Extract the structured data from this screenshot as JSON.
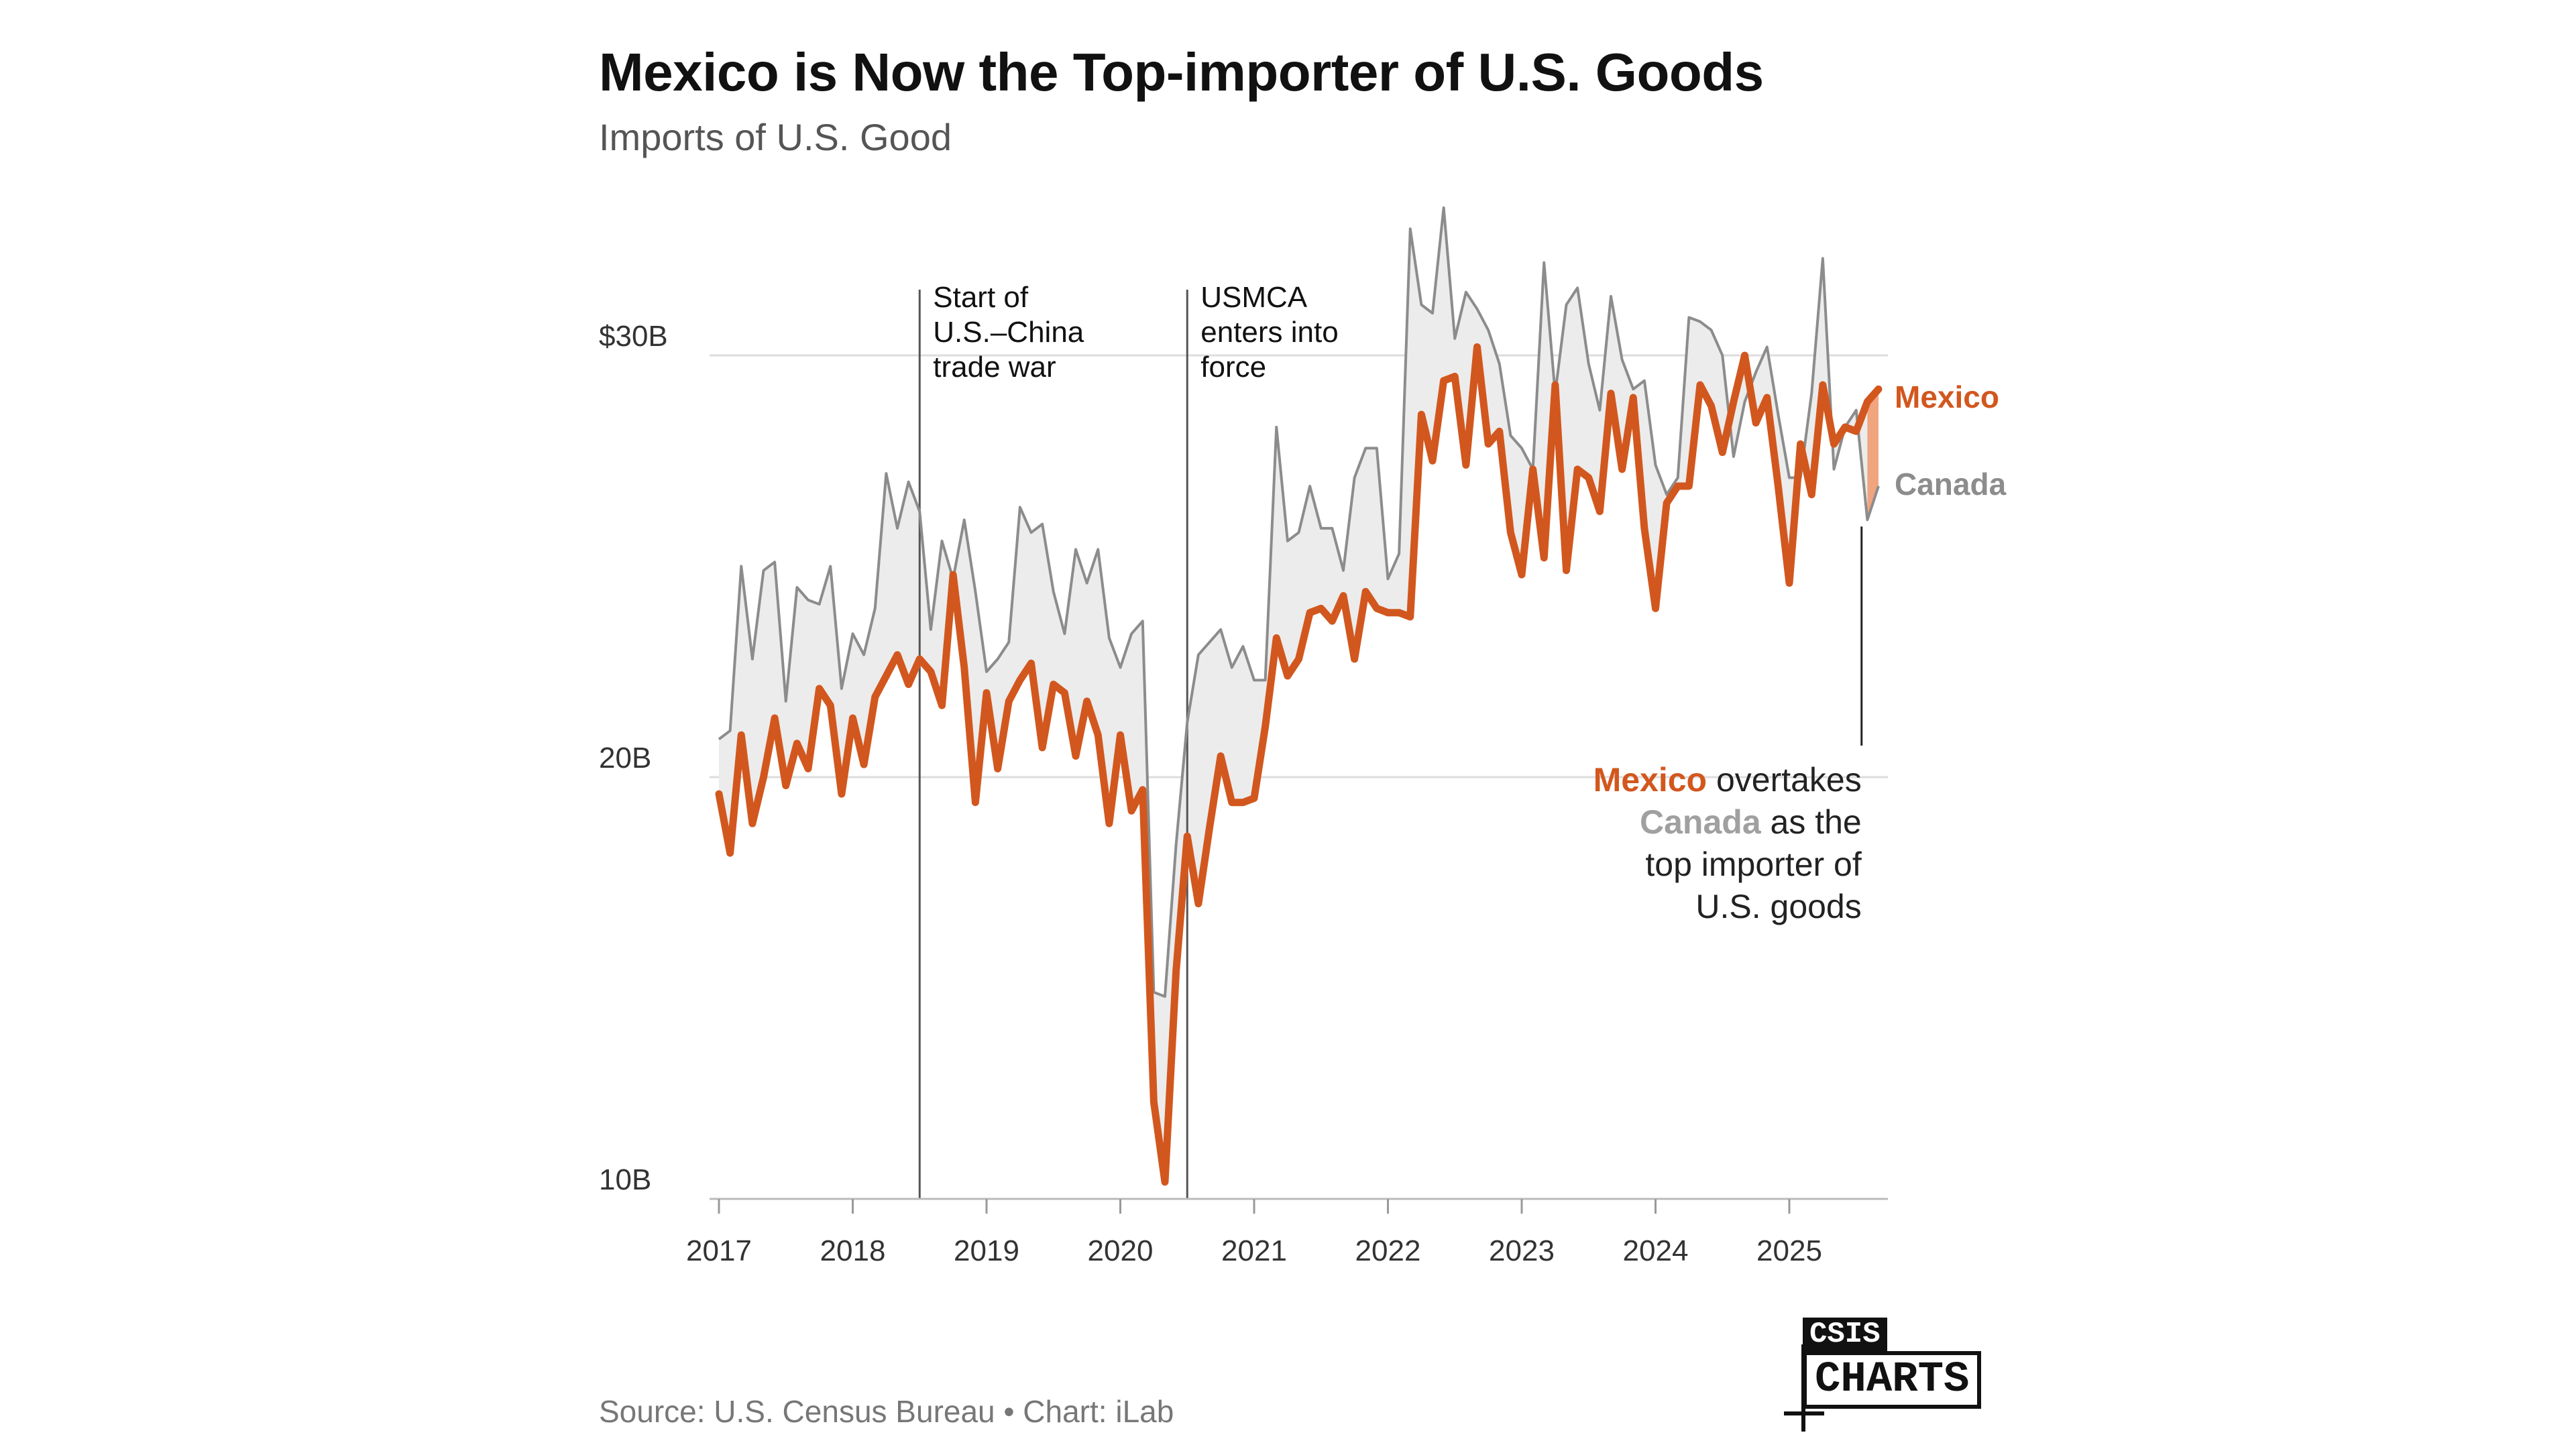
{
  "title": "Mexico is Now the Top-importer of U.S. Goods",
  "subtitle": "Imports of U.S. Good",
  "source": "Source: U.S. Census Bureau • Chart: iLab",
  "logo": {
    "top": "CSIS",
    "bottom": "CHARTS"
  },
  "colors": {
    "mexico": "#d2571e",
    "canada": "#8c8c8c",
    "fill": "#ececec",
    "overtake_fill": "#f0a57e",
    "grid": "#dddddd",
    "vline": "#555555"
  },
  "chart_data": {
    "type": "line",
    "title": "Mexico is Now the Top-importer of U.S. Goods",
    "subtitle": "Imports of U.S. Good",
    "x_start": "2017-01",
    "x_end": "2025-07",
    "ylim": [
      10,
      31
    ],
    "ytick_values": [
      10,
      20,
      30
    ],
    "ytick_labels": [
      "10B",
      "20B",
      "$30B"
    ],
    "xtick_years": [
      2017,
      2018,
      2019,
      2020,
      2021,
      2022,
      2023,
      2024,
      2025
    ],
    "xtick_labels": [
      "2017",
      "2018",
      "2019",
      "2020",
      "2021",
      "2022",
      "2023",
      "2024",
      "2025"
    ],
    "grid": "horizontal",
    "series": [
      {
        "name": "Mexico",
        "values": [
          19.6,
          18.2,
          21.0,
          18.9,
          20.0,
          21.4,
          19.8,
          20.8,
          20.2,
          22.1,
          21.7,
          19.6,
          21.4,
          20.3,
          21.9,
          22.4,
          22.9,
          22.2,
          22.8,
          22.5,
          21.7,
          24.8,
          22.6,
          19.4,
          22.0,
          20.2,
          21.8,
          22.3,
          22.7,
          20.7,
          22.2,
          22.0,
          20.5,
          21.8,
          21.0,
          18.9,
          21.0,
          19.2,
          19.7,
          12.3,
          10.4,
          15.4,
          18.6,
          17.0,
          18.8,
          20.5,
          19.4,
          19.4,
          19.5,
          21.2,
          23.3,
          22.4,
          22.8,
          23.9,
          24.0,
          23.7,
          24.3,
          22.8,
          24.4,
          24.0,
          23.9,
          23.9,
          23.8,
          28.6,
          27.5,
          29.4,
          29.5,
          27.4,
          30.2,
          27.9,
          28.2,
          25.8,
          24.8,
          27.3,
          25.2,
          29.3,
          24.9,
          27.3,
          27.1,
          26.3,
          29.1,
          27.3,
          29.0,
          25.9,
          24.0,
          26.5,
          26.9,
          26.9,
          29.3,
          28.8,
          27.7,
          28.9,
          30.0,
          28.4,
          29.0,
          26.9,
          24.6,
          27.9,
          26.7,
          29.3,
          27.9,
          28.3,
          28.2,
          28.9,
          29.2
        ]
      },
      {
        "name": "Canada",
        "values": [
          20.9,
          21.1,
          25.0,
          22.8,
          24.9,
          25.1,
          21.8,
          24.5,
          24.2,
          24.1,
          25.0,
          22.1,
          23.4,
          22.9,
          24.0,
          27.2,
          25.9,
          27.0,
          26.3,
          23.5,
          25.6,
          24.7,
          26.1,
          24.4,
          22.5,
          22.8,
          23.2,
          26.4,
          25.8,
          26.0,
          24.4,
          23.4,
          25.4,
          24.6,
          25.4,
          23.3,
          22.6,
          23.4,
          23.7,
          14.9,
          14.8,
          18.4,
          21.3,
          22.9,
          23.2,
          23.5,
          22.6,
          23.1,
          22.3,
          22.3,
          28.3,
          25.6,
          25.8,
          26.9,
          25.9,
          25.9,
          24.9,
          27.1,
          27.8,
          27.8,
          24.7,
          25.3,
          33.0,
          31.2,
          31.0,
          33.5,
          30.4,
          31.5,
          31.1,
          30.6,
          29.8,
          28.1,
          27.8,
          27.3,
          32.2,
          29.1,
          31.2,
          31.6,
          29.8,
          28.7,
          31.4,
          29.9,
          29.2,
          29.4,
          27.4,
          26.7,
          27.1,
          30.9,
          30.8,
          30.6,
          30.0,
          27.6,
          28.9,
          29.6,
          30.2,
          28.6,
          27.1,
          27.1,
          29.1,
          32.3,
          27.3,
          28.3,
          28.7,
          26.1,
          26.9
        ]
      }
    ],
    "annotations": [
      {
        "date": "2018-07",
        "lines": [
          "Start of",
          "U.S.–China",
          "trade war"
        ]
      },
      {
        "date": "2020-07",
        "lines": [
          "USMCA",
          "enters into",
          "force"
        ]
      }
    ],
    "callout": {
      "line1_colored": "Mexico",
      "line1_rest": " overtakes",
      "line2_colored": "Canada",
      "line2_rest": " as the",
      "line3": "top importer of",
      "line4": "U.S. goods"
    }
  }
}
